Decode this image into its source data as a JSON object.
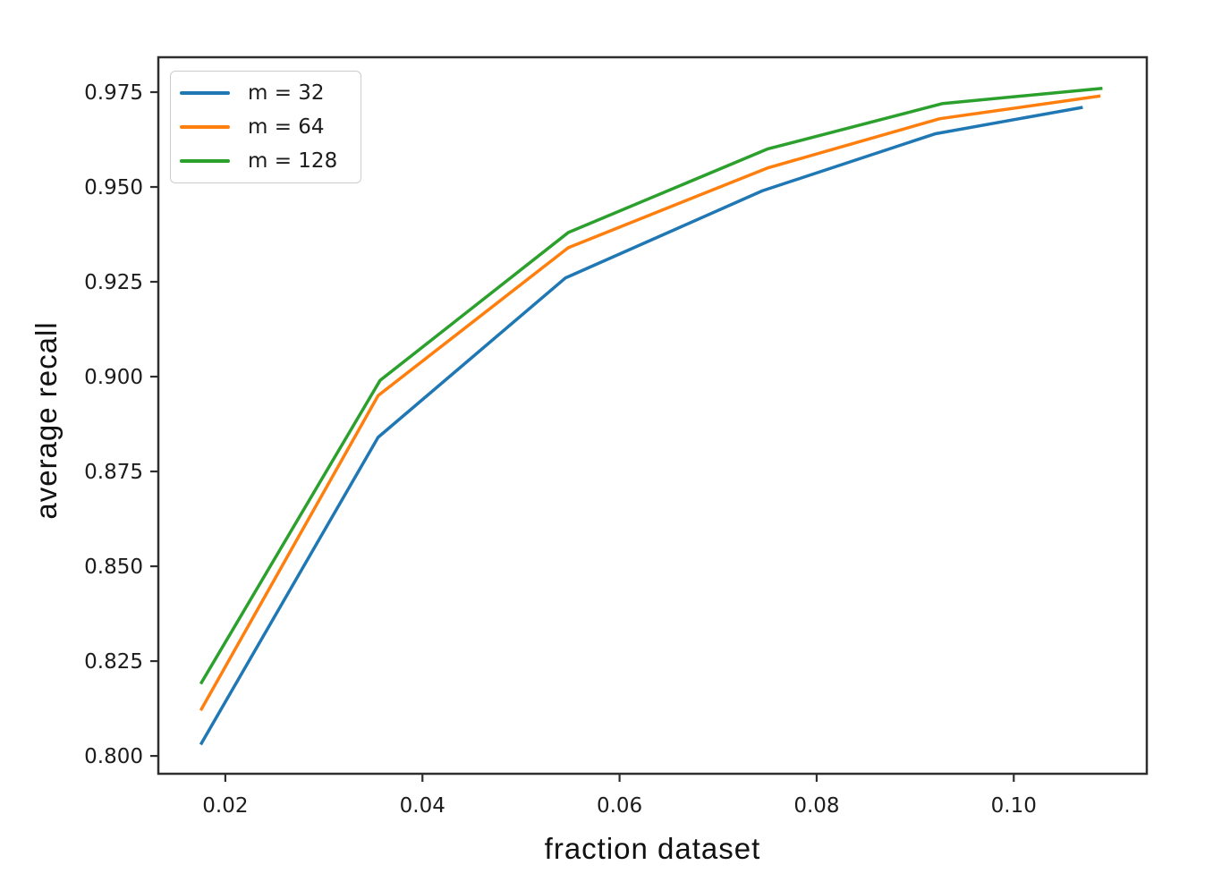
{
  "figure": {
    "background": "#ffffff",
    "spine_color": "#2e2e2e",
    "text_color": "#1c1c1c"
  },
  "chart_data": {
    "type": "line",
    "title": "",
    "xlabel": "fraction dataset",
    "ylabel": "average recall",
    "xlim": [
      0.0132,
      0.1135
    ],
    "ylim": [
      0.7953,
      0.9842
    ],
    "grid": false,
    "legend_position": "upper-left",
    "xticks": {
      "values": [
        0.02,
        0.04,
        0.06,
        0.08,
        0.1
      ],
      "labels": [
        "0.02",
        "0.04",
        "0.06",
        "0.08",
        "0.10"
      ]
    },
    "yticks": {
      "values": [
        0.8,
        0.825,
        0.85,
        0.875,
        0.9,
        0.925,
        0.95,
        0.975
      ],
      "labels": [
        "0.800",
        "0.825",
        "0.850",
        "0.875",
        "0.900",
        "0.925",
        "0.950",
        "0.975"
      ]
    },
    "series": [
      {
        "name": "m = 32",
        "color": "#1f77b4",
        "x": [
          0.0175,
          0.0355,
          0.0545,
          0.0745,
          0.092,
          0.107
        ],
        "y": [
          0.803,
          0.884,
          0.926,
          0.949,
          0.964,
          0.971
        ]
      },
      {
        "name": "m = 64",
        "color": "#ff7f0e",
        "x": [
          0.0175,
          0.0355,
          0.0548,
          0.075,
          0.0925,
          0.1088
        ],
        "y": [
          0.812,
          0.895,
          0.934,
          0.955,
          0.968,
          0.974
        ]
      },
      {
        "name": "m = 128",
        "color": "#2ca02c",
        "x": [
          0.0175,
          0.0357,
          0.0548,
          0.075,
          0.0928,
          0.109
        ],
        "y": [
          0.819,
          0.899,
          0.938,
          0.96,
          0.972,
          0.976
        ]
      }
    ]
  }
}
